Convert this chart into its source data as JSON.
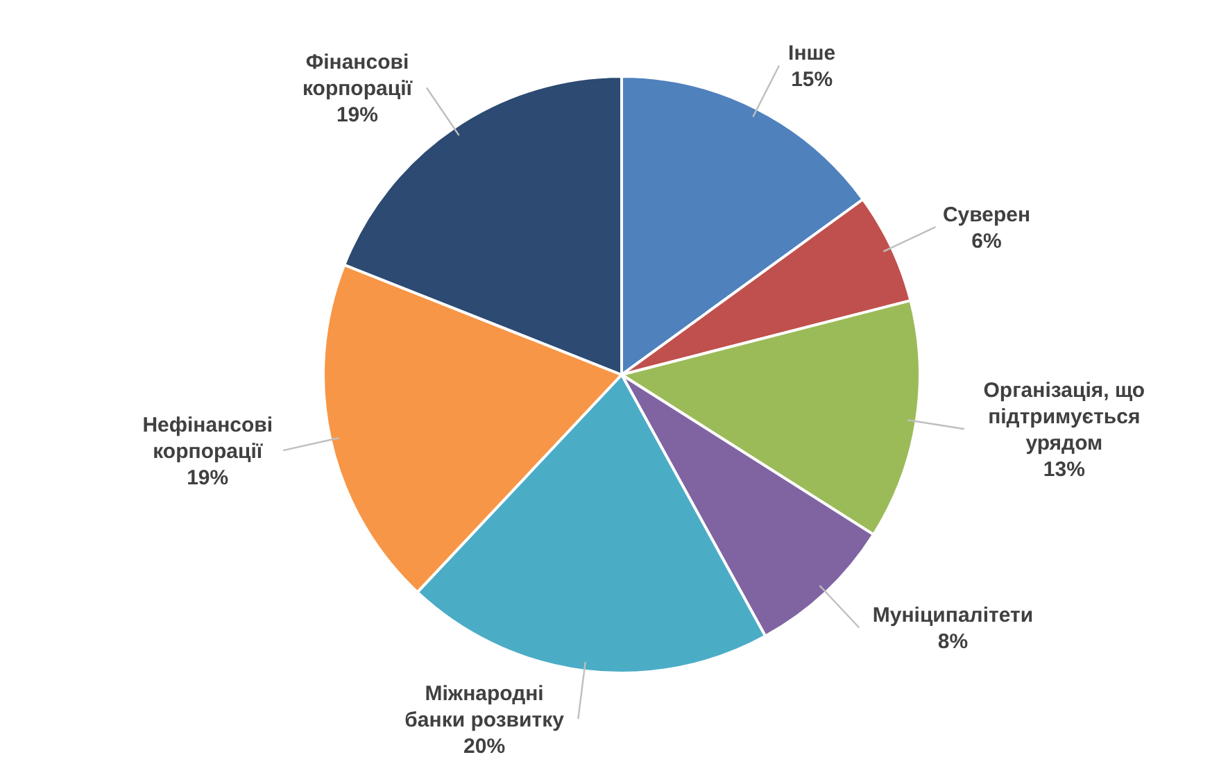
{
  "chart_data": {
    "type": "pie",
    "categories": [
      "Інше",
      "Суверен",
      "Організація, що\nпідтримується\nурядом",
      "Муніципалітети",
      "Міжнародні\nбанки розвитку",
      "Нефінансові\nкорпорації",
      "Фінансові\nкорпорації"
    ],
    "values": [
      15,
      6,
      13,
      8,
      20,
      19,
      19
    ],
    "value_labels": [
      "15%",
      "6%",
      "13%",
      "8%",
      "20%",
      "19%",
      "19%"
    ],
    "colors": [
      "#4f81bd",
      "#c0504d",
      "#9bbb59",
      "#8064a2",
      "#4bacc6",
      "#f79646",
      "#2c4a72"
    ]
  }
}
